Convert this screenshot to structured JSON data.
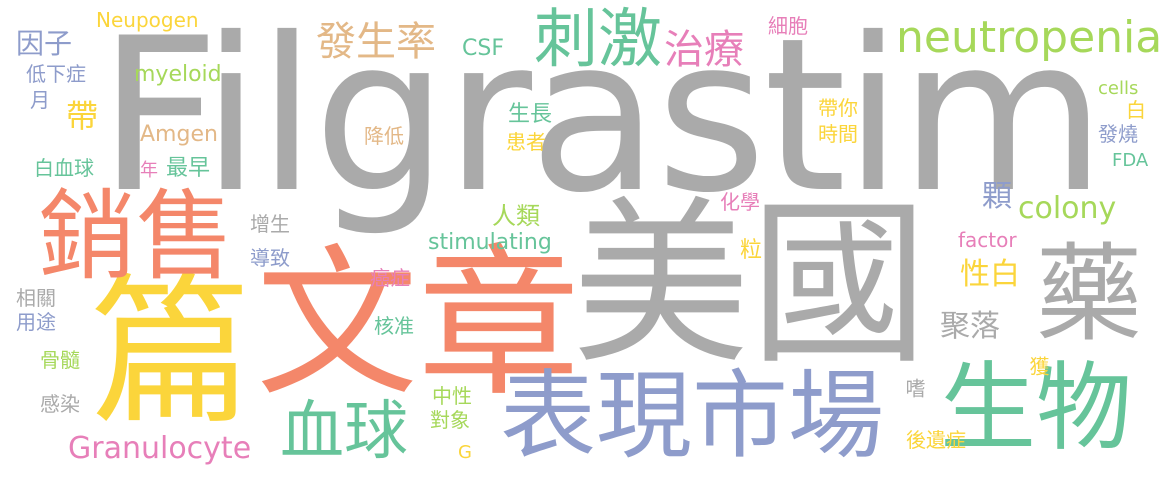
{
  "palette": {
    "gray": "#aaaaaa",
    "coral": "#f4876a",
    "yellow": "#fbd53b",
    "green": "#66c49a",
    "blue": "#8e9ccb",
    "lime": "#a6d85a",
    "tan": "#e3b887",
    "pink": "#e77fb9"
  },
  "words": [
    {
      "id": "filgrastim",
      "text": "Filgrastim",
      "color": "gray"
    },
    {
      "id": "meiguo",
      "text": "美國",
      "color": "gray"
    },
    {
      "id": "wenzhang",
      "text": "文章",
      "color": "coral"
    },
    {
      "id": "pian",
      "text": "篇",
      "color": "yellow"
    },
    {
      "id": "xiaoshou",
      "text": "銷售",
      "color": "coral"
    },
    {
      "id": "biaoxian",
      "text": "表現",
      "color": "blue"
    },
    {
      "id": "shichang",
      "text": "市場",
      "color": "blue"
    },
    {
      "id": "shengwu",
      "text": "生物",
      "color": "green"
    },
    {
      "id": "yao",
      "text": "藥",
      "color": "gray"
    },
    {
      "id": "ciji",
      "text": "刺激",
      "color": "green"
    },
    {
      "id": "xueqiu",
      "text": "血球",
      "color": "green"
    },
    {
      "id": "neutropenia",
      "text": "neutropenia",
      "color": "lime"
    },
    {
      "id": "zhiliao",
      "text": "治療",
      "color": "pink"
    },
    {
      "id": "fashenglv",
      "text": "發生率",
      "color": "tan"
    },
    {
      "id": "granulocyte",
      "text": "Granulocyte",
      "color": "pink"
    },
    {
      "id": "colony",
      "text": "colony",
      "color": "lime"
    },
    {
      "id": "stimulating",
      "text": "stimulating",
      "color": "green"
    },
    {
      "id": "myeloid",
      "text": "myeloid",
      "color": "lime"
    },
    {
      "id": "amgen",
      "text": "Amgen",
      "color": "tan"
    },
    {
      "id": "neupogen",
      "text": "Neupogen",
      "color": "yellow"
    },
    {
      "id": "csf",
      "text": "CSF",
      "color": "green"
    },
    {
      "id": "cells",
      "text": "cells",
      "color": "lime"
    },
    {
      "id": "factor",
      "text": "factor",
      "color": "pink"
    },
    {
      "id": "fda",
      "text": "FDA",
      "color": "green"
    },
    {
      "id": "g",
      "text": "G",
      "color": "yellow"
    },
    {
      "id": "yinzi",
      "text": "因子",
      "color": "blue"
    },
    {
      "id": "dixiazheng",
      "text": "低下症",
      "color": "blue"
    },
    {
      "id": "yue",
      "text": "月",
      "color": "blue"
    },
    {
      "id": "dai",
      "text": "帶",
      "color": "yellow"
    },
    {
      "id": "baixueqiu",
      "text": "白血球",
      "color": "green"
    },
    {
      "id": "nian",
      "text": "年",
      "color": "pink"
    },
    {
      "id": "zuizao",
      "text": "最早",
      "color": "green"
    },
    {
      "id": "zengsheng",
      "text": "增生",
      "color": "gray"
    },
    {
      "id": "daozhi",
      "text": "導致",
      "color": "blue"
    },
    {
      "id": "xiangguan",
      "text": "相關",
      "color": "gray"
    },
    {
      "id": "yongtu",
      "text": "用途",
      "color": "blue"
    },
    {
      "id": "gusui",
      "text": "骨髓",
      "color": "lime"
    },
    {
      "id": "ganran",
      "text": "感染",
      "color": "gray"
    },
    {
      "id": "jiangdi",
      "text": "降低",
      "color": "tan"
    },
    {
      "id": "shengzhang",
      "text": "生長",
      "color": "green"
    },
    {
      "id": "huanzhe",
      "text": "患者",
      "color": "yellow"
    },
    {
      "id": "renlei",
      "text": "人類",
      "color": "lime"
    },
    {
      "id": "aizheng",
      "text": "癌症",
      "color": "pink"
    },
    {
      "id": "hezhun",
      "text": "核准",
      "color": "green"
    },
    {
      "id": "zhongxing",
      "text": "中性",
      "color": "lime"
    },
    {
      "id": "duixiang",
      "text": "對象",
      "color": "lime"
    },
    {
      "id": "xibao",
      "text": "細胞",
      "color": "pink"
    },
    {
      "id": "daini",
      "text": "帶你",
      "color": "yellow"
    },
    {
      "id": "shijian",
      "text": "時間",
      "color": "yellow"
    },
    {
      "id": "huaxue",
      "text": "化學",
      "color": "pink"
    },
    {
      "id": "li",
      "text": "粒",
      "color": "yellow"
    },
    {
      "id": "ke",
      "text": "顆",
      "color": "blue"
    },
    {
      "id": "xingbai",
      "text": "性白",
      "color": "yellow"
    },
    {
      "id": "juluo",
      "text": "聚落",
      "color": "gray"
    },
    {
      "id": "bai",
      "text": "白",
      "color": "yellow"
    },
    {
      "id": "fashao",
      "text": "發燒",
      "color": "blue"
    },
    {
      "id": "huo",
      "text": "獲",
      "color": "yellow"
    },
    {
      "id": "shi",
      "text": "嗜",
      "color": "gray"
    },
    {
      "id": "houyizheng",
      "text": "後遺症",
      "color": "yellow"
    }
  ]
}
